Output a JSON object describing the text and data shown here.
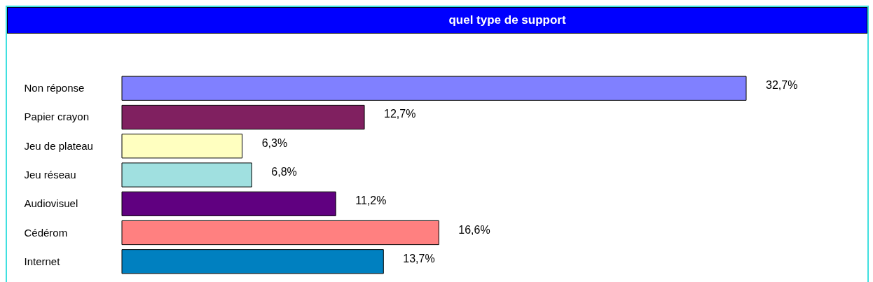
{
  "chart_data": {
    "type": "bar",
    "orientation": "horizontal",
    "title": "quel type de support",
    "categories": [
      "Non réponse",
      "Papier crayon",
      "Jeu de plateau",
      "Jeu réseau",
      "Audiovisuel",
      "Cédérom",
      "Internet"
    ],
    "values": [
      32.7,
      12.7,
      6.3,
      6.8,
      11.2,
      16.6,
      13.7
    ],
    "value_labels": [
      "32,7%",
      "12,7%",
      "6,3%",
      "6,8%",
      "11,2%",
      "16,6%",
      "13,7%"
    ],
    "colors": [
      "#8080ff",
      "#802060",
      "#ffffc0",
      "#a0e0e0",
      "#600080",
      "#ff8080",
      "#0080c0"
    ],
    "grid": false
  }
}
